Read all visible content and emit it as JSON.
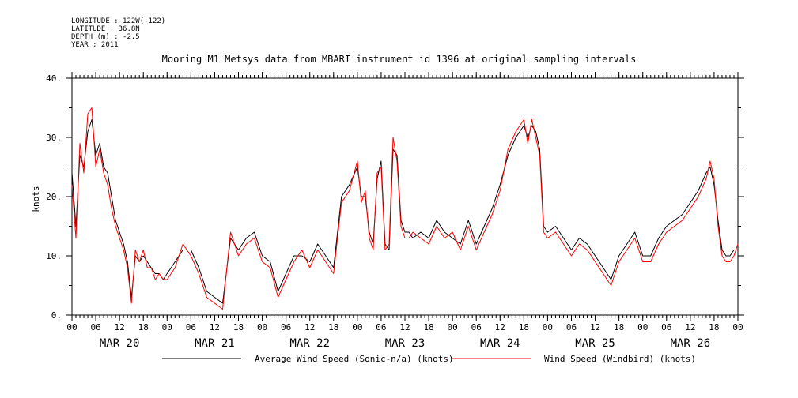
{
  "header": {
    "longitude": "LONGITUDE : 122W(-122)",
    "latitude": "LATITUDE : 36.8N",
    "depth": "DEPTH (m) : -2.5",
    "year": "YEAR : 2011"
  },
  "chart_data": {
    "type": "line",
    "title": "Mooring M1 Metsys data from MBARI instrument id 1396 at original sampling intervals",
    "xlabel": "",
    "ylabel": "knots",
    "ylim": [
      0,
      40
    ],
    "yticks": [
      "0.",
      "10.",
      "20.",
      "30.",
      "40."
    ],
    "ytick_values": [
      0,
      10,
      20,
      30,
      40
    ],
    "xlim_hours": [
      0,
      168
    ],
    "xtick_labels": [
      "00",
      "06",
      "12",
      "18",
      "00",
      "06",
      "12",
      "18",
      "00",
      "06",
      "12",
      "18",
      "00",
      "06",
      "12",
      "18",
      "00",
      "06",
      "12",
      "18",
      "00",
      "06",
      "12",
      "18",
      "00",
      "06",
      "12",
      "18",
      "00"
    ],
    "day_labels": [
      "MAR 20",
      "MAR 21",
      "MAR 22",
      "MAR 23",
      "MAR 24",
      "MAR 25",
      "MAR 26"
    ],
    "grid": false,
    "legend_position": "bottom",
    "series": [
      {
        "name": "Average Wind Speed (Sonic-n/a) (knots)",
        "color": "#000000",
        "x": [
          0,
          1,
          2,
          3,
          4,
          5,
          6,
          7,
          8,
          9,
          10,
          11,
          12,
          13,
          14,
          15,
          16,
          17,
          18,
          19,
          20,
          21,
          22,
          23,
          24,
          26,
          28,
          30,
          32,
          34,
          36,
          38,
          40,
          42,
          44,
          46,
          48,
          50,
          52,
          54,
          56,
          58,
          60,
          62,
          64,
          66,
          68,
          70,
          72,
          73,
          74,
          75,
          76,
          77,
          78,
          79,
          80,
          81,
          82,
          83,
          84,
          85,
          86,
          88,
          90,
          92,
          94,
          96,
          98,
          100,
          102,
          104,
          106,
          108,
          110,
          112,
          113,
          114,
          115,
          116,
          117,
          118,
          119,
          120,
          122,
          124,
          126,
          128,
          130,
          132,
          134,
          136,
          138,
          140,
          142,
          144,
          146,
          148,
          150,
          152,
          154,
          156,
          158,
          160,
          161,
          162,
          163,
          164,
          165,
          166,
          167,
          168
        ],
        "values": [
          24,
          15,
          27,
          25,
          31,
          33,
          27,
          29,
          25,
          24,
          20,
          16,
          14,
          12,
          9,
          3,
          10,
          9,
          10,
          9,
          8,
          7,
          7,
          6,
          7,
          9,
          11,
          11,
          8,
          4,
          3,
          2,
          13,
          11,
          13,
          14,
          10,
          9,
          4,
          7,
          10,
          10,
          9,
          12,
          10,
          8,
          20,
          22,
          25,
          20,
          20,
          14,
          12,
          23,
          26,
          12,
          11,
          28,
          27,
          16,
          14,
          14,
          13,
          14,
          13,
          16,
          14,
          13,
          12,
          16,
          12,
          15,
          18,
          22,
          27,
          30,
          31,
          32,
          30,
          32,
          31,
          28,
          15,
          14,
          15,
          13,
          11,
          13,
          12,
          10,
          8,
          6,
          10,
          12,
          14,
          10,
          10,
          13,
          15,
          16,
          17,
          19,
          21,
          24,
          25,
          22,
          16,
          11,
          10,
          10,
          11,
          11
        ]
      },
      {
        "name": "Wind Speed (Windbird) (knots)",
        "color": "#ff0000",
        "x": [
          0,
          1,
          2,
          3,
          4,
          5,
          6,
          7,
          8,
          9,
          10,
          11,
          12,
          13,
          14,
          15,
          16,
          17,
          18,
          19,
          20,
          21,
          22,
          23,
          24,
          26,
          28,
          30,
          32,
          34,
          36,
          38,
          40,
          42,
          44,
          46,
          48,
          50,
          52,
          54,
          56,
          58,
          60,
          62,
          64,
          66,
          68,
          70,
          72,
          73,
          74,
          75,
          76,
          77,
          78,
          79,
          80,
          81,
          82,
          83,
          84,
          85,
          86,
          88,
          90,
          92,
          94,
          96,
          98,
          100,
          102,
          104,
          106,
          108,
          110,
          112,
          113,
          114,
          115,
          116,
          117,
          118,
          119,
          120,
          122,
          124,
          126,
          128,
          130,
          132,
          134,
          136,
          138,
          140,
          142,
          144,
          146,
          148,
          150,
          152,
          154,
          156,
          158,
          160,
          161,
          162,
          163,
          164,
          165,
          166,
          167,
          168
        ],
        "values": [
          22,
          13,
          29,
          24,
          34,
          35,
          25,
          28,
          24,
          22,
          18,
          15,
          13,
          11,
          8,
          2,
          11,
          9,
          11,
          8,
          8,
          6,
          7,
          6,
          6,
          8,
          12,
          10,
          7,
          3,
          2,
          1,
          14,
          10,
          12,
          13,
          9,
          8,
          3,
          6,
          9,
          11,
          8,
          11,
          9,
          7,
          19,
          21,
          26,
          19,
          21,
          13,
          11,
          24,
          25,
          11,
          12,
          30,
          26,
          15,
          13,
          13,
          14,
          13,
          12,
          15,
          13,
          14,
          11,
          15,
          11,
          14,
          17,
          21,
          28,
          31,
          32,
          33,
          29,
          33,
          30,
          27,
          14,
          13,
          14,
          12,
          10,
          12,
          11,
          9,
          7,
          5,
          9,
          11,
          13,
          9,
          9,
          12,
          14,
          15,
          16,
          18,
          20,
          23,
          26,
          23,
          15,
          10,
          9,
          9,
          10,
          12
        ]
      }
    ]
  }
}
